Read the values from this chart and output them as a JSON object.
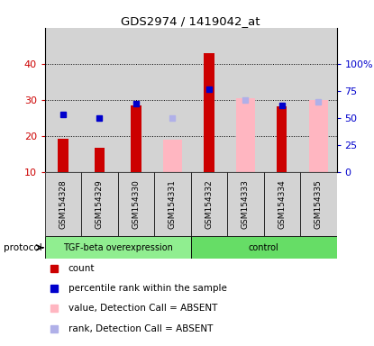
{
  "title": "GDS2974 / 1419042_at",
  "samples": [
    "GSM154328",
    "GSM154329",
    "GSM154330",
    "GSM154331",
    "GSM154332",
    "GSM154333",
    "GSM154334",
    "GSM154335"
  ],
  "count_values": [
    19.3,
    16.8,
    28.5,
    null,
    43.0,
    null,
    28.2,
    null
  ],
  "count_color": "#CC0000",
  "rank_values": [
    26.0,
    25.0,
    29.0,
    null,
    33.0,
    null,
    28.5,
    null
  ],
  "rank_color": "#0000CC",
  "absent_value_values": [
    null,
    null,
    null,
    19.0,
    null,
    30.5,
    null,
    30.0
  ],
  "absent_value_color": "#FFB6C1",
  "absent_rank_values": [
    null,
    null,
    null,
    25.0,
    null,
    30.0,
    null,
    29.5
  ],
  "absent_rank_color": "#B0B0E8",
  "ylim": [
    10,
    50
  ],
  "left_yticks": [
    10,
    20,
    30,
    40
  ],
  "left_ytick_labels": [
    "10",
    "20",
    "30",
    "40"
  ],
  "right_ytick_vals": [
    10,
    17.5,
    25.0,
    32.5,
    40.0
  ],
  "right_ytick_labels": [
    "0",
    "25",
    "50",
    "75",
    "100%"
  ],
  "col_bg_color": "#D3D3D3",
  "plot_bg_color": "#FFFFFF",
  "grid_color": "#000000",
  "tgf_group_color": "#90EE90",
  "ctrl_group_color": "#66DD66",
  "tgf_label": "TGF-beta overexpression",
  "ctrl_label": "control",
  "protocol_label": "protocol",
  "legend_entries": [
    {
      "label": "count",
      "color": "#CC0000",
      "alpha": 1.0
    },
    {
      "label": "percentile rank within the sample",
      "color": "#0000CC",
      "alpha": 1.0
    },
    {
      "label": "value, Detection Call = ABSENT",
      "color": "#FFB6C1",
      "alpha": 1.0
    },
    {
      "label": "rank, Detection Call = ABSENT",
      "color": "#B0B0E8",
      "alpha": 1.0
    }
  ]
}
